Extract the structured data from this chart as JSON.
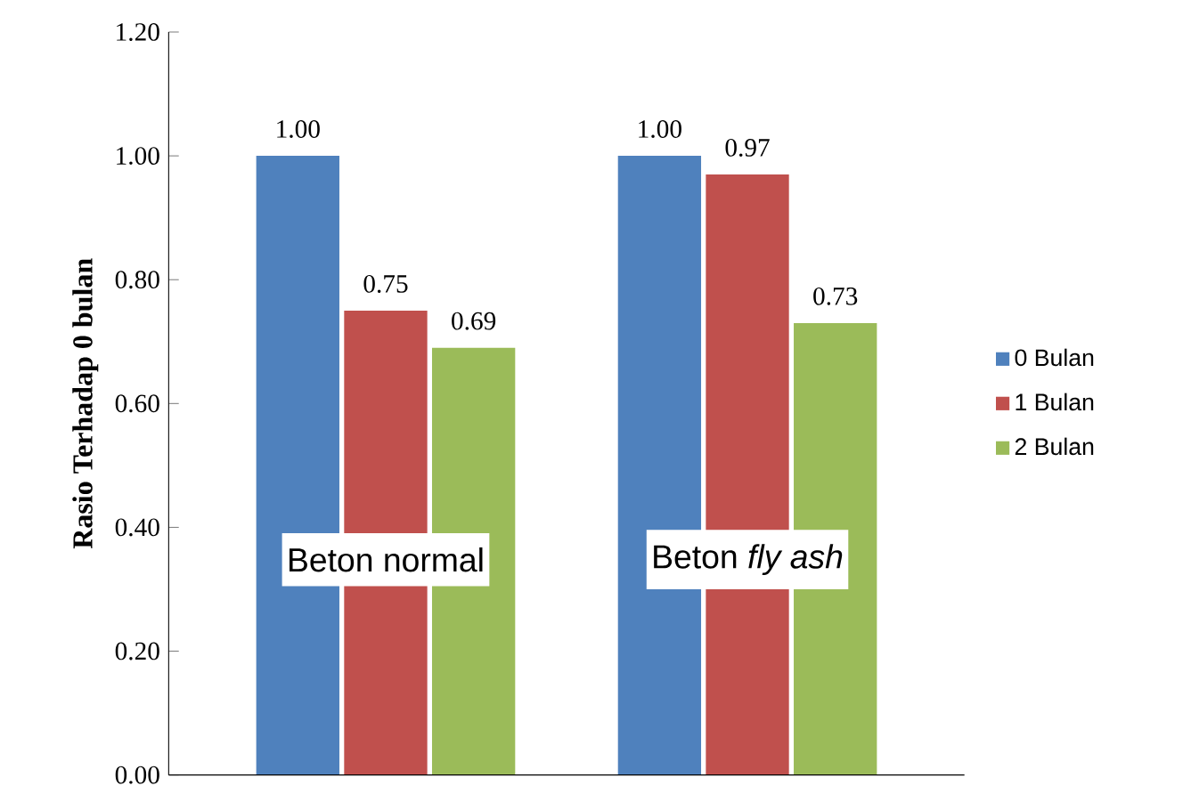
{
  "chart_data": {
    "type": "bar",
    "ylabel": "Rasio Terhadap 0 bulan",
    "categories": [
      "Beton normal",
      "Beton *fly ash*"
    ],
    "series": [
      {
        "name": "0 Bulan",
        "color": "#4f81bd",
        "values": [
          1.0,
          1.0
        ],
        "value_labels": [
          "1.00",
          "1.00"
        ]
      },
      {
        "name": "1 Bulan",
        "color": "#c0504d",
        "values": [
          0.75,
          0.97
        ],
        "value_labels": [
          "0.75",
          "0.97"
        ]
      },
      {
        "name": "2 Bulan",
        "color": "#9bbb59",
        "values": [
          0.69,
          0.73
        ],
        "value_labels": [
          "0.69",
          "0.73"
        ]
      }
    ],
    "ylim": [
      0,
      1.2
    ],
    "yticks": [
      {
        "value": 0,
        "label": "0.00"
      },
      {
        "value": 0.2,
        "label": "0.20"
      },
      {
        "value": 0.4,
        "label": "0.40"
      },
      {
        "value": 0.6,
        "label": "0.60"
      },
      {
        "value": 0.8,
        "label": "0.80"
      },
      {
        "value": 1.0,
        "label": "1.00"
      },
      {
        "value": 1.2,
        "label": "1.20"
      }
    ],
    "legend": "right",
    "grid": false
  }
}
